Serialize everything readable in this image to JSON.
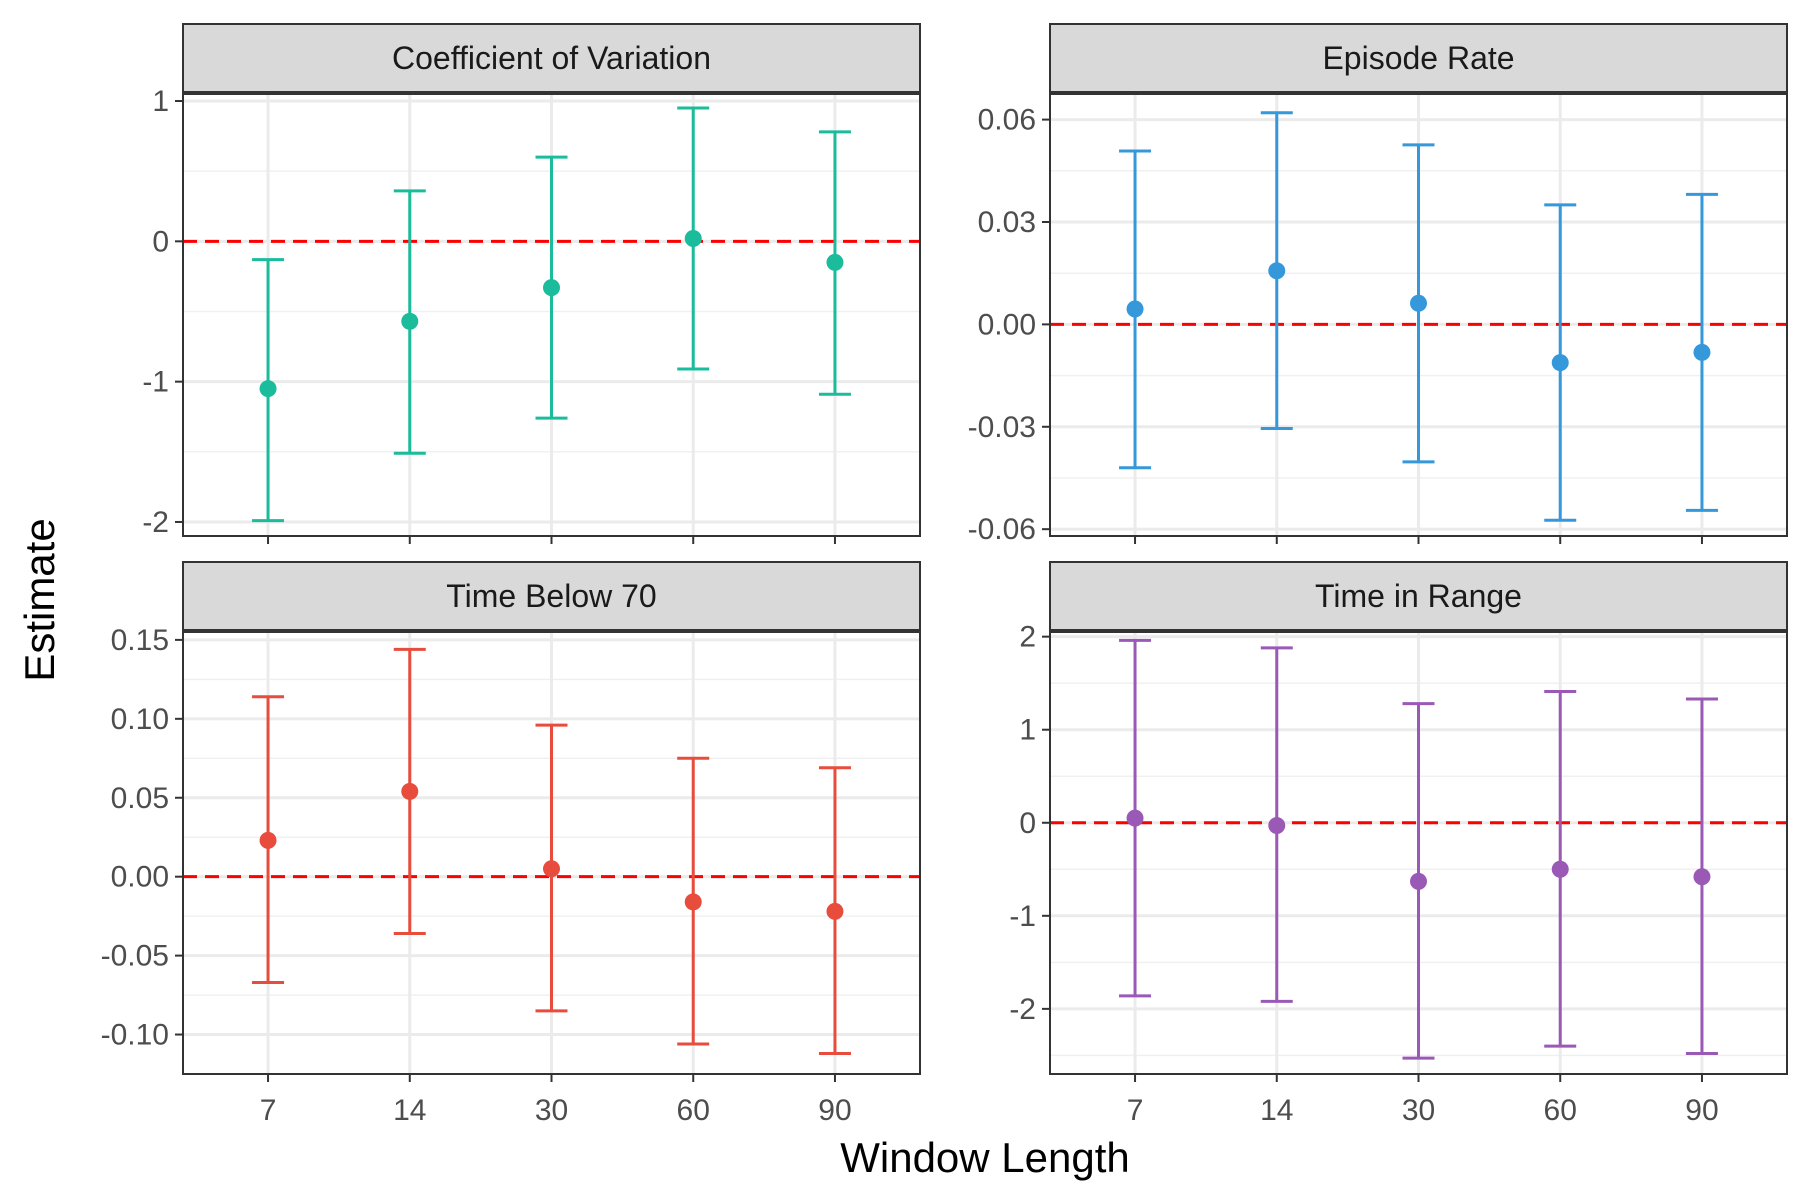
{
  "figure": {
    "xlabel": "Window Length",
    "ylabel": "Estimate"
  },
  "chart_data": [
    {
      "type": "scatter",
      "title": "Coefficient of Variation",
      "color": "#1ABC9C",
      "categories": [
        "7",
        "14",
        "30",
        "60",
        "90"
      ],
      "values": [
        -1.05,
        -0.57,
        -0.33,
        0.02,
        -0.15
      ],
      "lower": [
        -1.99,
        -1.51,
        -1.26,
        -0.91,
        -1.09
      ],
      "upper": [
        -0.13,
        0.36,
        0.6,
        0.95,
        0.78
      ],
      "ylim": [
        -2.1,
        1.05
      ],
      "yticks": [
        -2,
        -1,
        0,
        1
      ],
      "ytick_labels": [
        "-2",
        "-1",
        "0",
        "1"
      ],
      "reference_line": 0,
      "reference_color": "#FF0000",
      "grid": true
    },
    {
      "type": "scatter",
      "title": "Episode Rate",
      "color": "#3498DB",
      "categories": [
        "7",
        "14",
        "30",
        "60",
        "90"
      ],
      "values": [
        0.0045,
        0.0157,
        0.0062,
        -0.0112,
        -0.0082
      ],
      "lower": [
        -0.042,
        -0.0305,
        -0.0403,
        -0.0574,
        -0.0545
      ],
      "upper": [
        0.0508,
        0.062,
        0.0526,
        0.035,
        0.0381
      ],
      "ylim": [
        -0.062,
        0.0675
      ],
      "yticks": [
        -0.06,
        -0.03,
        0.0,
        0.03,
        0.06
      ],
      "ytick_labels": [
        "-0.06",
        "-0.03",
        "0.00",
        "0.03",
        "0.06"
      ],
      "reference_line": 0,
      "reference_color": "#FF0000",
      "grid": true
    },
    {
      "type": "scatter",
      "title": "Time Below 70",
      "color": "#E74C3C",
      "categories": [
        "7",
        "14",
        "30",
        "60",
        "90"
      ],
      "values": [
        0.023,
        0.054,
        0.005,
        -0.016,
        -0.022
      ],
      "lower": [
        -0.067,
        -0.036,
        -0.085,
        -0.106,
        -0.112
      ],
      "upper": [
        0.114,
        0.144,
        0.096,
        0.075,
        0.069
      ],
      "ylim": [
        -0.125,
        0.155
      ],
      "yticks": [
        -0.1,
        -0.05,
        0.0,
        0.05,
        0.1,
        0.15
      ],
      "ytick_labels": [
        "-0.10",
        "-0.05",
        "0.00",
        "0.05",
        "0.10",
        "0.15"
      ],
      "reference_line": 0,
      "reference_color": "#FF0000",
      "grid": true
    },
    {
      "type": "scatter",
      "title": "Time in Range",
      "color": "#9B59B6",
      "categories": [
        "7",
        "14",
        "30",
        "60",
        "90"
      ],
      "values": [
        0.05,
        -0.03,
        -0.63,
        -0.5,
        -0.58
      ],
      "lower": [
        -1.86,
        -1.92,
        -2.53,
        -2.4,
        -2.48
      ],
      "upper": [
        1.96,
        1.88,
        1.28,
        1.41,
        1.33
      ],
      "ylim": [
        -2.7,
        2.05
      ],
      "yticks": [
        -2,
        -1,
        0,
        1,
        2
      ],
      "ytick_labels": [
        "-2",
        "-1",
        "0",
        "1",
        "2"
      ],
      "reference_line": 0,
      "reference_color": "#FF0000",
      "grid": true
    }
  ]
}
